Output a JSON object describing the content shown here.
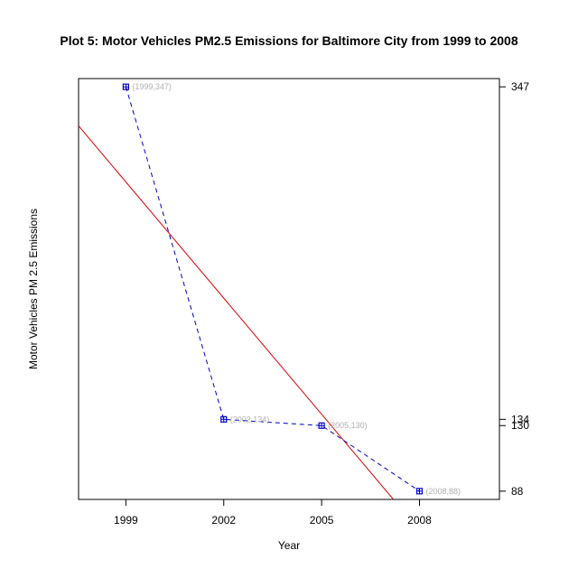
{
  "chart_data": {
    "type": "line",
    "title": "Plot 5: Motor Vehicles PM2.5 Emissions for Baltimore City from 1999 to 2008",
    "xlabel": "Year",
    "ylabel": "Motor Vehicles PM 2.5 Emissions",
    "x": [
      1999,
      2002,
      2005,
      2008
    ],
    "xlim": [
      1997.55,
      2010.45
    ],
    "ylim": [
      82.7,
      352.3
    ],
    "x_ticks": [
      "1999",
      "2002",
      "2005",
      "2008"
    ],
    "y_ticks": [
      "88",
      "130",
      "134",
      "347"
    ],
    "y_tick_side": "right",
    "grid": false,
    "series": [
      {
        "values": [
          347,
          134,
          130,
          88
        ],
        "style": "dashed line with square markers",
        "color": "#0000cc",
        "point_labels": [
          "(1999,347)",
          "(2002,134)",
          "(2005,130)",
          "(2008,88)"
        ],
        "point_label_color": "#b0b0b0"
      }
    ],
    "trend_line": {
      "type": "linear regression",
      "color": "#dd0000",
      "x": [
        1997.55,
        2007.2
      ],
      "y": [
        322,
        82.7
      ]
    }
  }
}
